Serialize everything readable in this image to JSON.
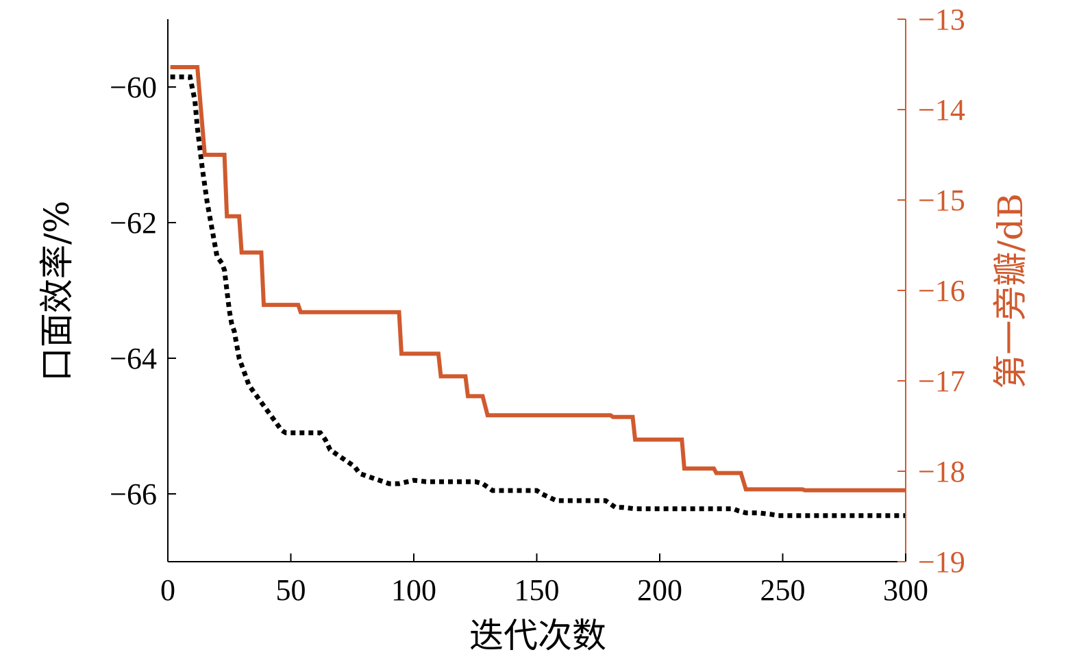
{
  "chart_data": {
    "type": "line",
    "title": "",
    "xlabel": "迭代次数",
    "ylabel_left": "口面效率/%",
    "ylabel_right": "第一旁瓣/dB",
    "xlim": [
      0,
      300
    ],
    "ylim_left": [
      -67,
      -59
    ],
    "ylim_right": [
      -19,
      -13
    ],
    "x_ticks": [
      0,
      50,
      100,
      150,
      200,
      250,
      300
    ],
    "x_tick_labels": [
      "0",
      "50",
      "100",
      "150",
      "200",
      "250",
      "300"
    ],
    "y_left_ticks": [
      -60,
      -62,
      -64,
      -66
    ],
    "y_left_tick_labels": [
      "−60",
      "−62",
      "−64",
      "−66"
    ],
    "y_right_ticks": [
      -13,
      -14,
      -15,
      -16,
      -17,
      -18,
      -19
    ],
    "y_right_tick_labels": [
      "−13",
      "−14",
      "−15",
      "−16",
      "−17",
      "−18",
      "−19"
    ],
    "grid": false,
    "series": [
      {
        "axis": "left",
        "style": "dotted",
        "color": "#000000",
        "x": [
          1,
          9,
          11,
          12,
          14,
          16,
          18,
          20,
          22,
          23,
          24,
          25,
          26,
          27,
          28,
          29,
          30,
          31,
          32,
          33,
          34,
          35,
          36,
          37,
          38,
          39,
          40,
          41,
          42,
          43,
          44,
          45,
          46,
          47,
          48,
          50,
          52,
          54,
          56,
          58,
          62,
          64,
          66,
          68,
          70,
          72,
          74,
          76,
          78,
          82,
          86,
          90,
          94,
          100,
          105,
          110,
          115,
          120,
          125,
          128,
          130,
          132,
          134,
          136,
          140,
          145,
          150,
          152,
          155,
          158,
          162,
          165,
          170,
          175,
          178,
          180,
          182,
          185,
          190,
          195,
          200,
          205,
          210,
          215,
          220,
          225,
          230,
          232,
          235,
          240,
          245,
          248,
          250,
          255,
          260,
          265,
          270,
          275,
          280,
          285,
          290,
          295,
          300
        ],
        "values": [
          -59.85,
          -59.85,
          -60.2,
          -60.6,
          -61.2,
          -61.7,
          -62.1,
          -62.5,
          -62.6,
          -62.7,
          -63.0,
          -63.3,
          -63.5,
          -63.6,
          -63.8,
          -64.0,
          -64.1,
          -64.2,
          -64.3,
          -64.4,
          -64.45,
          -64.5,
          -64.55,
          -64.6,
          -64.65,
          -64.7,
          -64.75,
          -64.8,
          -64.85,
          -64.9,
          -64.95,
          -65.0,
          -65.05,
          -65.08,
          -65.1,
          -65.1,
          -65.1,
          -65.1,
          -65.1,
          -65.1,
          -65.1,
          -65.2,
          -65.35,
          -65.4,
          -65.45,
          -65.5,
          -65.55,
          -65.6,
          -65.7,
          -65.75,
          -65.8,
          -65.85,
          -65.85,
          -65.8,
          -65.82,
          -65.82,
          -65.82,
          -65.82,
          -65.82,
          -65.85,
          -65.9,
          -65.95,
          -65.95,
          -65.95,
          -65.95,
          -65.95,
          -65.95,
          -66.0,
          -66.05,
          -66.1,
          -66.1,
          -66.1,
          -66.1,
          -66.1,
          -66.1,
          -66.15,
          -66.2,
          -66.2,
          -66.22,
          -66.22,
          -66.22,
          -66.22,
          -66.22,
          -66.22,
          -66.22,
          -66.22,
          -66.22,
          -66.25,
          -66.28,
          -66.28,
          -66.3,
          -66.32,
          -66.32,
          -66.32,
          -66.32,
          -66.32,
          -66.32,
          -66.32,
          -66.32,
          -66.32,
          -66.32,
          -66.32,
          -66.32
        ]
      },
      {
        "axis": "right",
        "style": "solid",
        "color": "#d05a2e",
        "x": [
          1,
          12,
          15,
          23,
          24,
          29,
          30,
          38,
          39,
          53,
          54,
          94,
          95,
          110,
          111,
          121,
          122,
          128,
          130,
          180,
          181,
          189,
          190,
          209,
          210,
          222,
          223,
          233,
          235,
          258,
          259,
          300
        ],
        "values": [
          -13.53,
          -13.53,
          -14.5,
          -14.5,
          -15.18,
          -15.18,
          -15.58,
          -15.58,
          -16.16,
          -16.16,
          -16.24,
          -16.24,
          -16.7,
          -16.7,
          -16.95,
          -16.95,
          -17.17,
          -17.17,
          -17.38,
          -17.38,
          -17.4,
          -17.4,
          -17.65,
          -17.65,
          -17.97,
          -17.97,
          -18.02,
          -18.02,
          -18.2,
          -18.2,
          -18.21,
          -18.21
        ]
      }
    ],
    "colors": {
      "left_axis": "#000000",
      "right_axis": "#d05a2e"
    }
  }
}
